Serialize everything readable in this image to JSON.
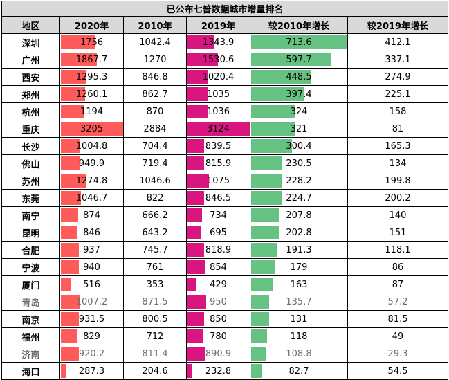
{
  "title": "已公布七普数据城市增量排名",
  "headers": [
    "地区",
    "2020年",
    "2010年",
    "2019年",
    "较2010年增长",
    "较2019年增长"
  ],
  "colors": {
    "pop2020_bar": "#ff5b5b",
    "pop2019_bar": "#d9157f",
    "inc2010_bar": "#66c282",
    "header_bg": "#d9d9d9"
  },
  "scale": {
    "pop2020_max": 3205,
    "pop2019_max": 3124,
    "inc2010_max": 713.6
  },
  "rows": [
    {
      "city": "深圳",
      "pop2020": "1756",
      "pop2010": "1042.4",
      "pop2019": "1343.9",
      "inc2010": "713.6",
      "inc2019": "412.1",
      "grey": false
    },
    {
      "city": "广州",
      "pop2020": "1867.7",
      "pop2010": "1270",
      "pop2019": "1530.6",
      "inc2010": "597.7",
      "inc2019": "337.1",
      "grey": false
    },
    {
      "city": "西安",
      "pop2020": "1295.3",
      "pop2010": "846.8",
      "pop2019": "1020.4",
      "inc2010": "448.5",
      "inc2019": "274.9",
      "grey": false
    },
    {
      "city": "郑州",
      "pop2020": "1260.1",
      "pop2010": "862.7",
      "pop2019": "1035",
      "inc2010": "397.4",
      "inc2019": "225.1",
      "grey": false
    },
    {
      "city": "杭州",
      "pop2020": "1194",
      "pop2010": "870",
      "pop2019": "1036",
      "inc2010": "324",
      "inc2019": "158",
      "grey": false
    },
    {
      "city": "重庆",
      "pop2020": "3205",
      "pop2010": "2884",
      "pop2019": "3124",
      "inc2010": "321",
      "inc2019": "81",
      "grey": false
    },
    {
      "city": "长沙",
      "pop2020": "1004.8",
      "pop2010": "704.4",
      "pop2019": "839.5",
      "inc2010": "300.4",
      "inc2019": "165.3",
      "grey": false
    },
    {
      "city": "佛山",
      "pop2020": "949.9",
      "pop2010": "719.4",
      "pop2019": "815.9",
      "inc2010": "230.5",
      "inc2019": "134",
      "grey": false
    },
    {
      "city": "苏州",
      "pop2020": "1274.8",
      "pop2010": "1046.6",
      "pop2019": "1075",
      "inc2010": "228.2",
      "inc2019": "199.8",
      "grey": false
    },
    {
      "city": "东莞",
      "pop2020": "1046.7",
      "pop2010": "822",
      "pop2019": "846.5",
      "inc2010": "224.7",
      "inc2019": "200.2",
      "grey": false
    },
    {
      "city": "南宁",
      "pop2020": "874",
      "pop2010": "666.2",
      "pop2019": "734",
      "inc2010": "207.8",
      "inc2019": "140",
      "grey": false
    },
    {
      "city": "昆明",
      "pop2020": "846",
      "pop2010": "643.2",
      "pop2019": "695",
      "inc2010": "202.8",
      "inc2019": "151",
      "grey": false
    },
    {
      "city": "合肥",
      "pop2020": "937",
      "pop2010": "745.7",
      "pop2019": "818.9",
      "inc2010": "191.3",
      "inc2019": "118.1",
      "grey": false
    },
    {
      "city": "宁波",
      "pop2020": "940",
      "pop2010": "761",
      "pop2019": "854",
      "inc2010": "179",
      "inc2019": "86",
      "grey": false
    },
    {
      "city": "厦门",
      "pop2020": "516",
      "pop2010": "353",
      "pop2019": "429",
      "inc2010": "163",
      "inc2019": "87",
      "grey": false
    },
    {
      "city": "青岛",
      "pop2020": "1007.2",
      "pop2010": "871.5",
      "pop2019": "950",
      "inc2010": "135.7",
      "inc2019": "57.2",
      "grey": true
    },
    {
      "city": "南京",
      "pop2020": "931.5",
      "pop2010": "800.5",
      "pop2019": "850",
      "inc2010": "131",
      "inc2019": "81.5",
      "grey": false
    },
    {
      "city": "福州",
      "pop2020": "829",
      "pop2010": "712",
      "pop2019": "780",
      "inc2010": "118",
      "inc2019": "49",
      "grey": false
    },
    {
      "city": "济南",
      "pop2020": "920.2",
      "pop2010": "811.4",
      "pop2019": "890.9",
      "inc2010": "108.8",
      "inc2019": "29.3",
      "grey": true
    },
    {
      "city": "海口",
      "pop2020": "287.3",
      "pop2010": "204.6",
      "pop2019": "232.8",
      "inc2010": "82.7",
      "inc2019": "54.5",
      "grey": false
    }
  ]
}
